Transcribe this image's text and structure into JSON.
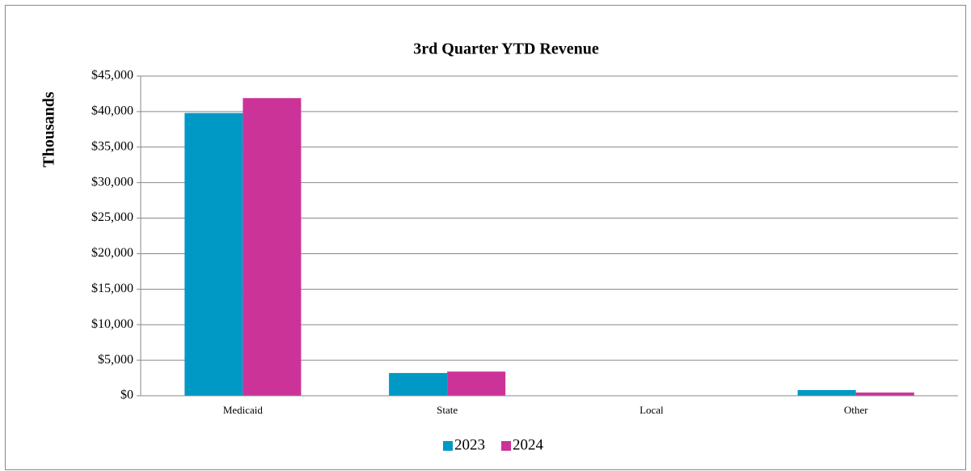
{
  "chart_data": {
    "type": "bar",
    "title": "3rd Quarter YTD Revenue",
    "y_label": "Thousands",
    "categories": [
      "Medicaid",
      "State",
      "Local",
      "Other"
    ],
    "series": [
      {
        "name": "2023",
        "color": "#0099c6",
        "values": [
          39800,
          3200,
          0,
          800
        ]
      },
      {
        "name": "2024",
        "color": "#cc3399",
        "values": [
          41900,
          3400,
          0,
          450
        ]
      }
    ],
    "ylim": [
      0,
      45000
    ],
    "yticks": [
      {
        "value": 0,
        "label": "$0"
      },
      {
        "value": 5000,
        "label": "$5,000"
      },
      {
        "value": 10000,
        "label": "$10,000"
      },
      {
        "value": 15000,
        "label": "$15,000"
      },
      {
        "value": 20000,
        "label": "$20,000"
      },
      {
        "value": 25000,
        "label": "$25,000"
      },
      {
        "value": 30000,
        "label": "$30,000"
      },
      {
        "value": 35000,
        "label": "$35,000"
      },
      {
        "value": 40000,
        "label": "$40,000"
      },
      {
        "value": 45000,
        "label": "$45,000"
      }
    ],
    "grid": true,
    "legend": "bottom"
  }
}
